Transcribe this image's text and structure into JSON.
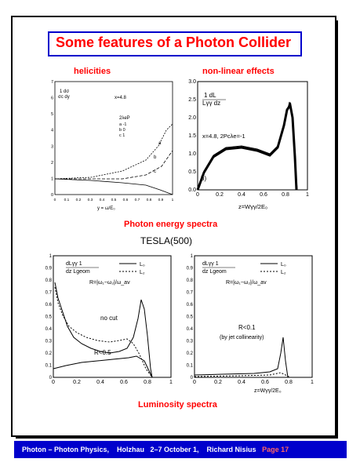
{
  "title": "Some features of a Photon Collider",
  "sections": {
    "helicities": "helicities",
    "nonlinear": "non-linear effects",
    "photon_spectra": "Photon energy spectra",
    "tesla": "TESLA(500)",
    "luminosity": "Luminosity spectra"
  },
  "plot_a": {
    "ylabel_top": "1  dσ",
    "ylabel_bot": "σc dy",
    "param": "x=4.8",
    "legend_header": "2λeP",
    "legend_rows": [
      "a  -1",
      "b   0",
      "c   1"
    ],
    "xaxis_label": "y = ω/E₀",
    "yticks": [
      "0",
      "1",
      "2",
      "3",
      "4",
      "5",
      "6",
      "7"
    ],
    "xticks": [
      "0",
      "0.1",
      "0.2",
      "0.3",
      "0.4",
      "0.5",
      "0.6",
      "0.7",
      "0.8",
      "0.9",
      "1"
    ],
    "curve_labels": [
      "a",
      "b",
      "c"
    ]
  },
  "plot_b": {
    "ylabel_top": "1  dL",
    "ylabel_bot": "Lγγ dz",
    "param": "x=4.8, 2Pcλe=-1",
    "panel": "b)",
    "xaxis_label": "z=Wγγ/2E₀",
    "yticks": [
      "0.0",
      "0.5",
      "1.0",
      "1.5",
      "2.0",
      "2.5",
      "3.0"
    ],
    "xticks": [
      "0",
      "0.2",
      "0.4",
      "0.6",
      "0.8",
      "1"
    ]
  },
  "plot_c": {
    "legend_l0": "L₀",
    "legend_l2": "L₂",
    "legend_frac_top": "dLγγ 1",
    "legend_frac_bot": "dz  Lgeom",
    "r_def": "R=|ω₁−ω₂|/ω_av",
    "label_nocut": "no cut",
    "label_cut": "R<0.5",
    "yticks": [
      "0",
      "0.1",
      "0.2",
      "0.3",
      "0.4",
      "0.5",
      "0.6",
      "0.7",
      "0.8",
      "0.9",
      "1"
    ],
    "xticks": [
      "0",
      "0.2",
      "0.4",
      "0.6",
      "0.8",
      "1"
    ]
  },
  "plot_d": {
    "legend_l0": "L₀",
    "legend_l2": "L₂",
    "legend_frac_top": "dLγγ 1",
    "legend_frac_bot": "dz  Lgeom",
    "r_def": "R=|ω₁−ω₂|/ω_av",
    "label_cut": "R<0.1",
    "label_jet": "(by jet collinearity)",
    "xaxis_label": "z=Wγγ/2E₀",
    "yticks": [
      "0",
      "0.1",
      "0.2",
      "0.3",
      "0.4",
      "0.5",
      "0.6",
      "0.7",
      "0.8",
      "0.9",
      "1"
    ],
    "xticks": [
      "0",
      "0.2",
      "0.4",
      "0.6",
      "0.8",
      "1"
    ]
  },
  "footer": {
    "text": "Photon – Photon Physics,    Holzhau   2–7 October 1,    Richard Nisius   ",
    "page": "Page 17"
  }
}
